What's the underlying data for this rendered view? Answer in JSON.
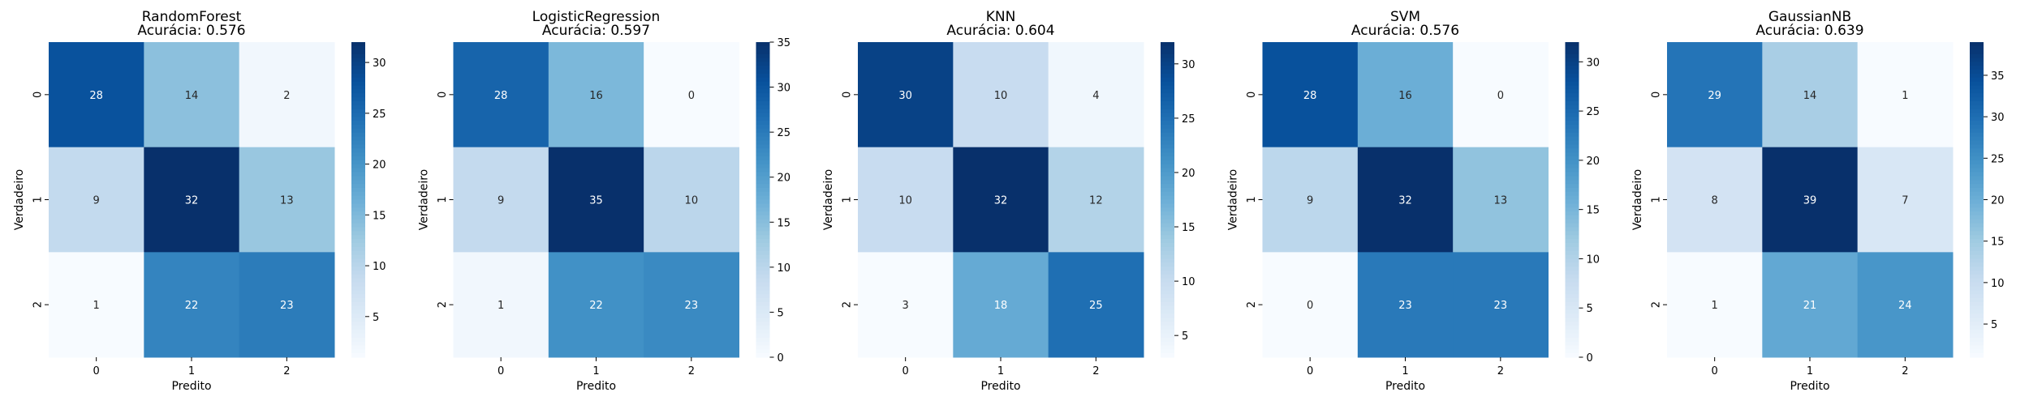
{
  "figure": {
    "background": "#ffffff",
    "colormap": "Blues"
  },
  "chart_data": [
    {
      "type": "heatmap",
      "title": "RandomForest",
      "subtitle": "Acurácia: 0.576",
      "xlabel": "Predito",
      "ylabel": "Verdadeiro",
      "x_tick_labels": [
        "0",
        "1",
        "2"
      ],
      "y_tick_labels": [
        "0",
        "1",
        "2"
      ],
      "matrix": [
        [
          28,
          14,
          2
        ],
        [
          9,
          32,
          13
        ],
        [
          1,
          22,
          23
        ]
      ],
      "colorbar_ticks": [
        "5",
        "10",
        "15",
        "20",
        "25",
        "30"
      ],
      "colorbar_tick_values": [
        5,
        10,
        15,
        20,
        25,
        30
      ]
    },
    {
      "type": "heatmap",
      "title": "LogisticRegression",
      "subtitle": "Acurácia: 0.597",
      "xlabel": "Predito",
      "ylabel": "Verdadeiro",
      "x_tick_labels": [
        "0",
        "1",
        "2"
      ],
      "y_tick_labels": [
        "0",
        "1",
        "2"
      ],
      "matrix": [
        [
          28,
          16,
          0
        ],
        [
          9,
          35,
          10
        ],
        [
          1,
          22,
          23
        ]
      ],
      "colorbar_ticks": [
        "0",
        "5",
        "10",
        "15",
        "20",
        "25",
        "30",
        "35"
      ],
      "colorbar_tick_values": [
        0,
        5,
        10,
        15,
        20,
        25,
        30,
        35
      ]
    },
    {
      "type": "heatmap",
      "title": "KNN",
      "subtitle": "Acurácia: 0.604",
      "xlabel": "Predito",
      "ylabel": "Verdadeiro",
      "x_tick_labels": [
        "0",
        "1",
        "2"
      ],
      "y_tick_labels": [
        "0",
        "1",
        "2"
      ],
      "matrix": [
        [
          30,
          10,
          4
        ],
        [
          10,
          32,
          12
        ],
        [
          3,
          18,
          25
        ]
      ],
      "colorbar_ticks": [
        "5",
        "10",
        "15",
        "20",
        "25",
        "30"
      ],
      "colorbar_tick_values": [
        5,
        10,
        15,
        20,
        25,
        30
      ]
    },
    {
      "type": "heatmap",
      "title": "SVM",
      "subtitle": "Acurácia: 0.576",
      "xlabel": "Predito",
      "ylabel": "Verdadeiro",
      "x_tick_labels": [
        "0",
        "1",
        "2"
      ],
      "y_tick_labels": [
        "0",
        "1",
        "2"
      ],
      "matrix": [
        [
          28,
          16,
          0
        ],
        [
          9,
          32,
          13
        ],
        [
          0,
          23,
          23
        ]
      ],
      "colorbar_ticks": [
        "0",
        "5",
        "10",
        "15",
        "20",
        "25",
        "30"
      ],
      "colorbar_tick_values": [
        0,
        5,
        10,
        15,
        20,
        25,
        30
      ]
    },
    {
      "type": "heatmap",
      "title": "GaussianNB",
      "subtitle": "Acurácia: 0.639",
      "xlabel": "Predito",
      "ylabel": "Verdadeiro",
      "x_tick_labels": [
        "0",
        "1",
        "2"
      ],
      "y_tick_labels": [
        "0",
        "1",
        "2"
      ],
      "matrix": [
        [
          29,
          14,
          1
        ],
        [
          8,
          39,
          7
        ],
        [
          1,
          21,
          24
        ]
      ],
      "colorbar_ticks": [
        "5",
        "10",
        "15",
        "20",
        "25",
        "30",
        "35"
      ],
      "colorbar_tick_values": [
        5,
        10,
        15,
        20,
        25,
        30,
        35
      ]
    }
  ]
}
